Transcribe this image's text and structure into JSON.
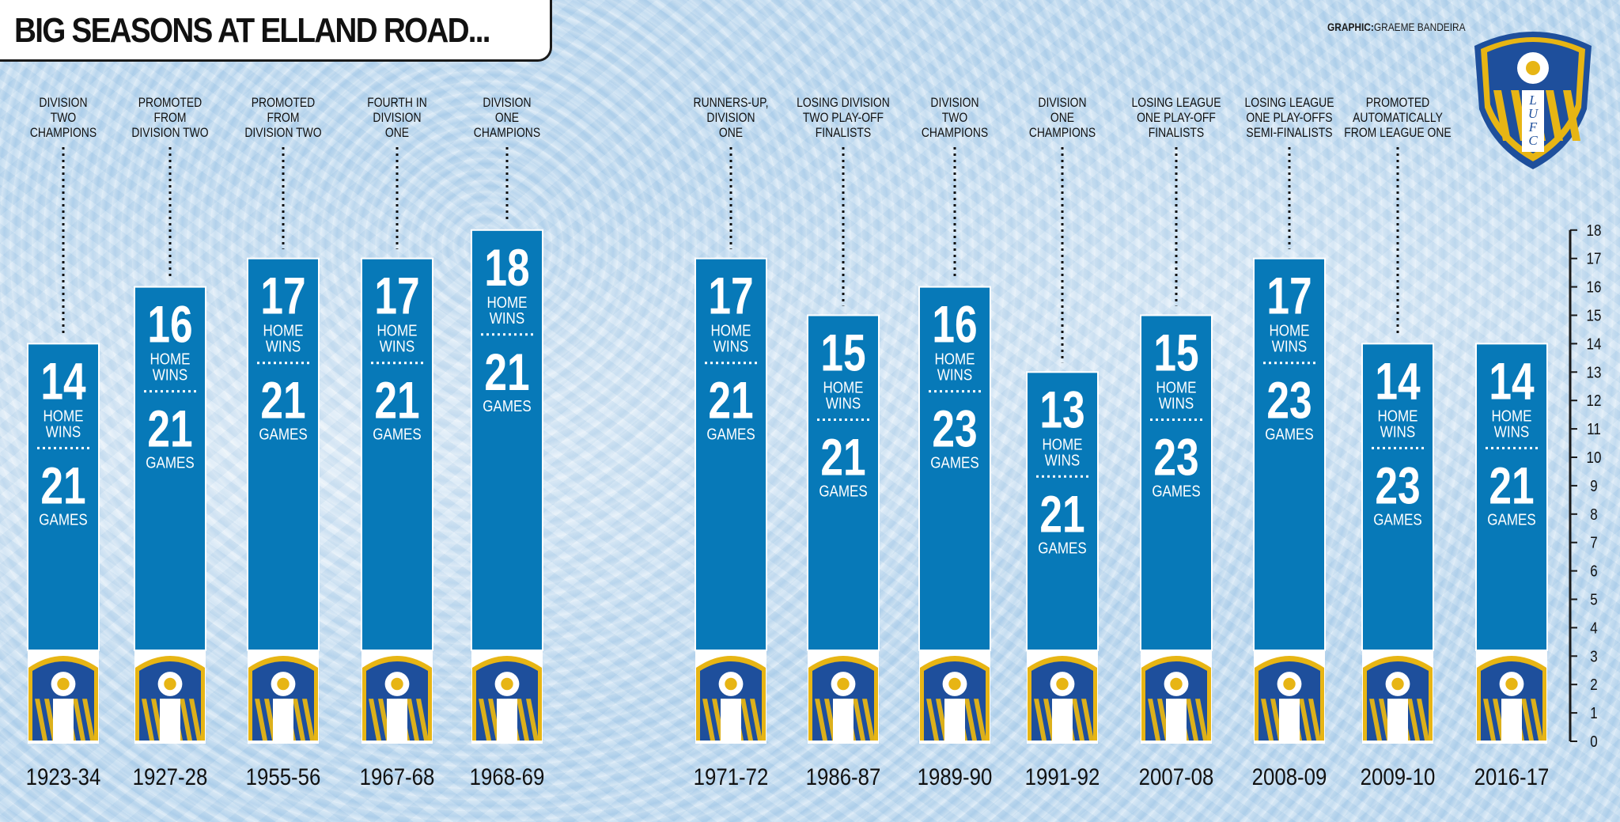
{
  "title": "BIG SEASONS AT ELLAND ROAD...",
  "credit": {
    "prefix": "GRAPHIC:",
    "name": "GRAEME BANDEIRA"
  },
  "colors": {
    "bar": "#0779b8",
    "crest_blue": "#1e4f9c",
    "crest_gold": "#e7b514",
    "text_dark": "#111111"
  },
  "icons": {
    "club_badge": "leeds-united-crest-icon",
    "bar_badge": "leeds-united-crest-icon"
  },
  "crest_lettering": "LUFC",
  "chart_data": {
    "type": "bar",
    "categories": [
      "1923-34",
      "1927-28",
      "1955-56",
      "1967-68",
      "1968-69",
      "1971-72",
      "1986-87",
      "1989-90",
      "1991-92",
      "2007-08",
      "2008-09",
      "2009-10",
      "2016-17"
    ],
    "series": [
      {
        "name": "HOME WINS",
        "values": [
          14,
          16,
          17,
          17,
          18,
          17,
          15,
          16,
          13,
          15,
          17,
          14,
          14
        ]
      },
      {
        "name": "GAMES",
        "values": [
          21,
          21,
          21,
          21,
          21,
          21,
          21,
          23,
          21,
          23,
          23,
          23,
          21
        ]
      }
    ],
    "annotations": [
      [
        "DIVISION",
        "TWO",
        "CHAMPIONS"
      ],
      [
        "PROMOTED",
        "FROM",
        "DIVISION TWO"
      ],
      [
        "PROMOTED",
        "FROM",
        "DIVISION TWO"
      ],
      [
        "FOURTH IN",
        "DIVISION",
        "ONE"
      ],
      [
        "DIVISION",
        "ONE",
        "CHAMPIONS"
      ],
      [
        "RUNNERS-UP,",
        "DIVISION",
        "ONE"
      ],
      [
        "LOSING DIVISION",
        "TWO PLAY-OFF",
        "FINALISTS"
      ],
      [
        "DIVISION",
        "TWO",
        "CHAMPIONS"
      ],
      [
        "DIVISION",
        "ONE",
        "CHAMPIONS"
      ],
      [
        "LOSING LEAGUE",
        "ONE PLAY-OFF",
        "FINALISTS"
      ],
      [
        "LOSING LEAGUE",
        "ONE PLAY-OFFS",
        "SEMI-FINALISTS"
      ],
      [
        "PROMOTED",
        "AUTOMATICALLY",
        "FROM LEAGUE ONE"
      ],
      []
    ],
    "wins_label": [
      "HOME",
      "WINS"
    ],
    "games_label": "GAMES",
    "yticks": [
      0,
      1,
      2,
      3,
      4,
      5,
      6,
      7,
      8,
      9,
      10,
      11,
      12,
      13,
      14,
      15,
      16,
      17,
      18
    ],
    "ylim": [
      0,
      18
    ],
    "grid": false,
    "legend": "none"
  }
}
